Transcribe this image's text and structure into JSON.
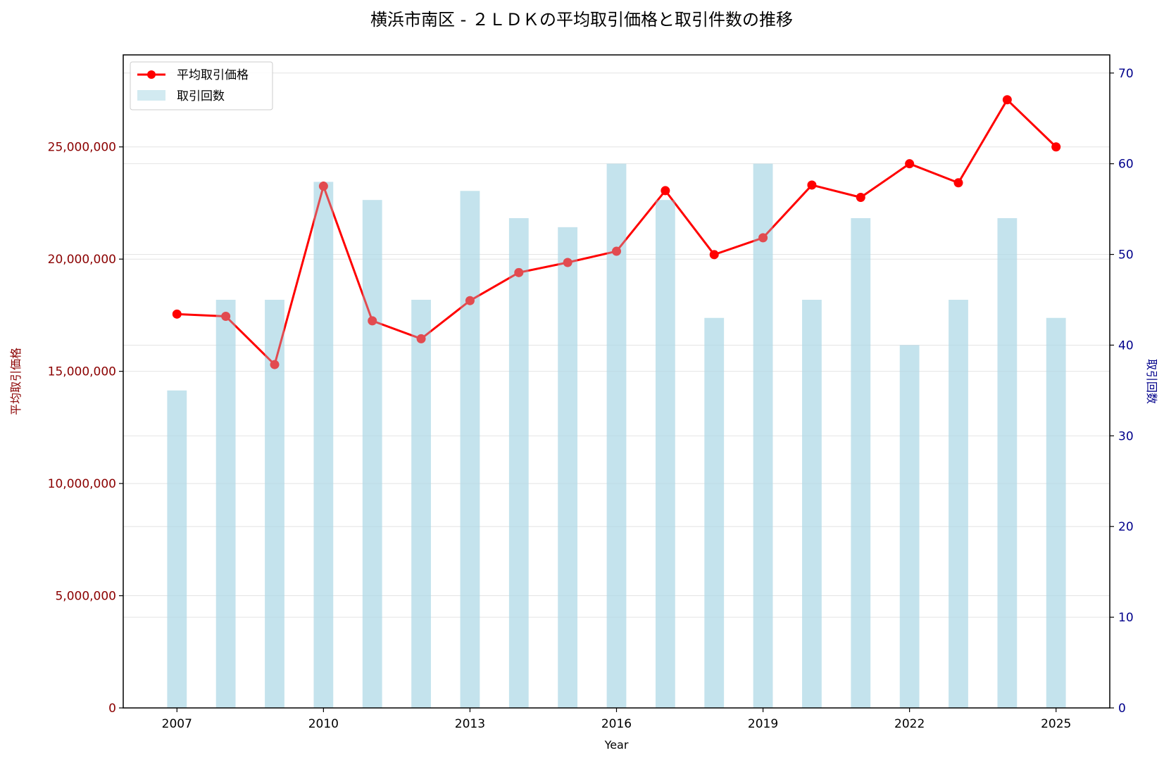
{
  "chart_data": {
    "type": "bar+line",
    "title": "横浜市南区 - ２ＬＤＫの平均取引価格と取引件数の推移",
    "xlabel": "Year",
    "ylabel_left": "平均取引価格",
    "ylabel_right": "取引回数",
    "x": [
      2007,
      2008,
      2009,
      2010,
      2011,
      2012,
      2013,
      2014,
      2015,
      2016,
      2017,
      2018,
      2019,
      2020,
      2021,
      2022,
      2023,
      2024,
      2025
    ],
    "x_ticks": [
      "2007",
      "2010",
      "2013",
      "2016",
      "2019",
      "2022",
      "2025"
    ],
    "y_left_ticks": [
      "0",
      "5,000,000",
      "10,000,000",
      "15,000,000",
      "20,000,000",
      "25,000,000"
    ],
    "y_right_ticks": [
      "0",
      "10",
      "20",
      "30",
      "40",
      "50",
      "60",
      "70"
    ],
    "ylim_left": [
      0,
      29100000
    ],
    "ylim_right": [
      0,
      72
    ],
    "series": [
      {
        "name": "平均取引価格",
        "axis": "left",
        "kind": "line",
        "values": [
          17550000,
          17450000,
          15300000,
          23250000,
          17250000,
          16450000,
          18150000,
          19400000,
          19850000,
          20350000,
          23050000,
          20200000,
          20950000,
          23300000,
          22750000,
          24250000,
          23400000,
          27100000,
          25000000
        ]
      },
      {
        "name": "取引回数",
        "axis": "right",
        "kind": "bar",
        "values": [
          35,
          45,
          45,
          58,
          56,
          45,
          57,
          54,
          53,
          60,
          56,
          43,
          60,
          45,
          54,
          40,
          45,
          54,
          43
        ]
      }
    ],
    "legend_position": "upper-left",
    "grid": true,
    "colors": {
      "line": "#ff0000",
      "line_behind_bar": "#d4707a",
      "bar": "#add8e6",
      "left_axis": "#8b0000",
      "right_axis": "#00008b"
    }
  }
}
